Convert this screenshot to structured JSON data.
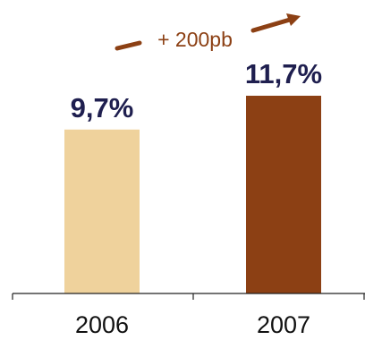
{
  "chart_data": {
    "type": "bar",
    "categories": [
      "2006",
      "2007"
    ],
    "values": [
      9.7,
      11.7
    ],
    "value_labels": [
      "9,7%",
      "11,7%"
    ],
    "ylim": [
      0,
      13.5
    ],
    "grid": false,
    "bar_colors": [
      "#EFD29C",
      "#8C4014"
    ],
    "label_color": "#1F1F4F",
    "annotation": {
      "text": "+ 200pb",
      "color": "#8C4014"
    }
  }
}
